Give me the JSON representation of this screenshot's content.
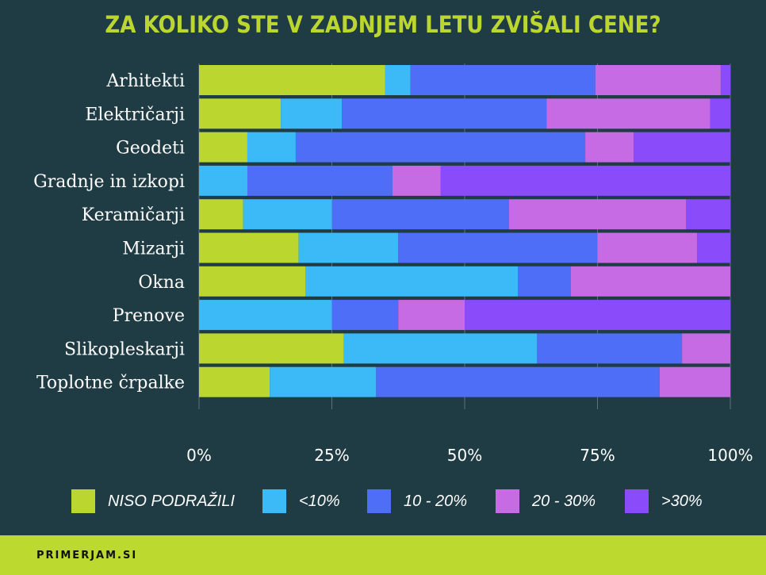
{
  "chart_data": {
    "type": "bar",
    "orientation": "horizontal",
    "stacked": true,
    "normalized": true,
    "title": "ZA KOLIKO STE V ZADNJEM LETU ZVIŠALI CENE?",
    "categories": [
      "Arhitekti",
      "Električarji",
      "Geodeti",
      "Gradnje in izkopi",
      "Keramičarji",
      "Mizarji",
      "Okna",
      "Prenove",
      "Slikopleskarji",
      "Toplotne črpalke"
    ],
    "series": [
      {
        "name": "NISO PODRAŽILI",
        "color": "#bcd630",
        "values": [
          35,
          15.4,
          9.1,
          0,
          8.3,
          18.75,
          20,
          0,
          27.3,
          13.3
        ]
      },
      {
        "name": "<10%",
        "color": "#3bbaf7",
        "values": [
          4.8,
          11.5,
          9.1,
          9.1,
          16.7,
          18.75,
          40,
          25,
          36.4,
          20
        ]
      },
      {
        "name": "10 - 20%",
        "color": "#4e6ef8",
        "values": [
          34.8,
          38.5,
          54.5,
          27.3,
          33.3,
          37.5,
          10,
          12.5,
          27.3,
          53.3
        ]
      },
      {
        "name": "20 - 30%",
        "color": "#c66be3",
        "values": [
          23.6,
          30.8,
          9.1,
          9.1,
          33.3,
          18.75,
          30,
          12.5,
          9.1,
          13.3
        ]
      },
      {
        "name": ">30%",
        "color": "#8a4cfb",
        "values": [
          1.8,
          3.8,
          18.2,
          54.5,
          8.3,
          6.25,
          0,
          50,
          0,
          0
        ]
      }
    ],
    "xlim": [
      0,
      100
    ],
    "xticks": [
      "0%",
      "25%",
      "50%",
      "75%",
      "100%"
    ],
    "grid": true,
    "legend_position": "bottom"
  },
  "footer": {
    "brand": "PRIMERJAM.SI"
  }
}
